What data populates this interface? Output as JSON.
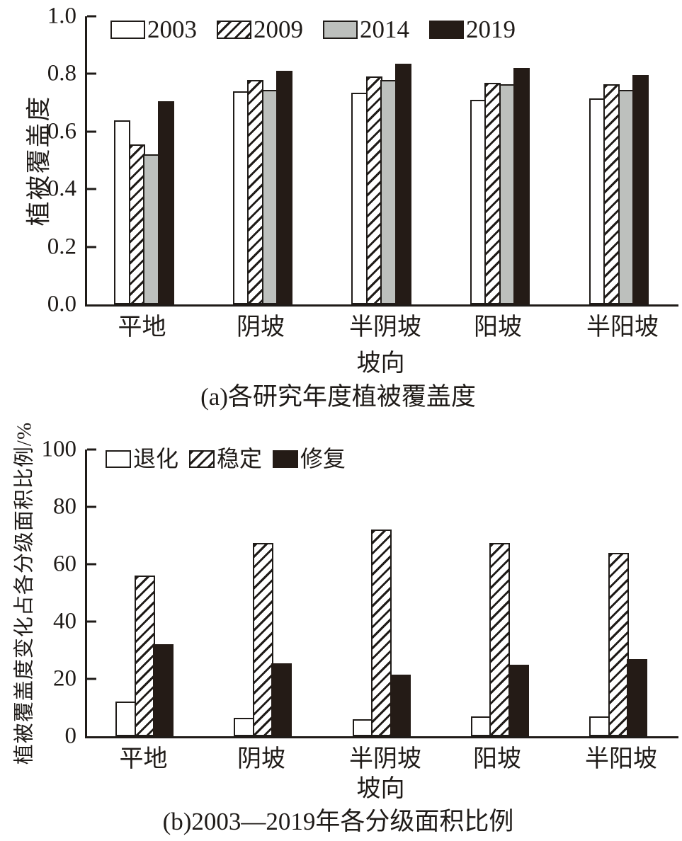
{
  "styles": {
    "ink": "#1f1b18",
    "bar_white": "#ffffff",
    "bar_gray": "#bdc0bd",
    "bar_black": "#241b16",
    "background": "#ffffff"
  },
  "chart_data": [
    {
      "type": "bar",
      "panel": "a",
      "caption": "(a)各研究年度植被覆盖度",
      "xlabel": "坡向",
      "ylabel": "植被覆盖度",
      "ylim": [
        0.0,
        1.0
      ],
      "ytick_labels": [
        "0.0",
        "0.2",
        "0.4",
        "0.6",
        "0.8",
        "1.0"
      ],
      "grid": false,
      "legend_position": "top-left-inside",
      "categories": [
        "平地",
        "阴坡",
        "半阴坡",
        "阳坡",
        "半阳坡"
      ],
      "series": [
        {
          "name": "2003",
          "pattern": "white",
          "values": [
            0.64,
            0.74,
            0.735,
            0.71,
            0.715
          ]
        },
        {
          "name": "2009",
          "pattern": "hatch",
          "values": [
            0.555,
            0.78,
            0.79,
            0.77,
            0.765
          ]
        },
        {
          "name": "2014",
          "pattern": "gray",
          "values": [
            0.52,
            0.745,
            0.78,
            0.765,
            0.745
          ]
        },
        {
          "name": "2019",
          "pattern": "black",
          "values": [
            0.705,
            0.81,
            0.835,
            0.82,
            0.795
          ]
        }
      ]
    },
    {
      "type": "bar",
      "panel": "b",
      "caption": "(b)2003—2019年各分级面积比例",
      "xlabel": "坡向",
      "ylabel": "植被覆盖度变化占各分级面积比例/%",
      "ylim": [
        0,
        100
      ],
      "ytick_labels": [
        "0",
        "20",
        "40",
        "60",
        "80",
        "100"
      ],
      "grid": false,
      "legend_position": "top-left-inside",
      "categories": [
        "平地",
        "阴坡",
        "半阴坡",
        "阳坡",
        "半阳坡"
      ],
      "series": [
        {
          "name": "退化",
          "pattern": "white",
          "values": [
            12,
            6.5,
            6,
            7,
            7
          ]
        },
        {
          "name": "稳定",
          "pattern": "hatch",
          "values": [
            56,
            67.5,
            72,
            67.5,
            64
          ]
        },
        {
          "name": "修复",
          "pattern": "black",
          "values": [
            32,
            25.5,
            21.5,
            25,
            27
          ]
        }
      ]
    }
  ]
}
